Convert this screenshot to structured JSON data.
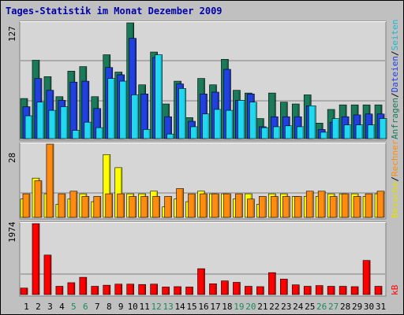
{
  "title": "Tages-Statistik im Monat Dezember 2009",
  "colors": {
    "background": "#c0c0c0",
    "panel": "#d6d6d6",
    "grid": "#808080",
    "title": "#0000aa",
    "anfragen": "#1a7a5a",
    "dateien": "#2040e0",
    "seiten": "#20d8f0",
    "besuche": "#ffff00",
    "rechner": "#ff8c10",
    "kb": "#ff0000",
    "weekday": "#000000",
    "weekend": "#1a8a5a"
  },
  "right_labels": {
    "top": [
      {
        "text": "Anfragen",
        "color": "#1a7a5a"
      },
      {
        "text": "/",
        "color": "#000000"
      },
      {
        "text": "Dateien",
        "color": "#2040e0"
      },
      {
        "text": "/",
        "color": "#000000"
      },
      {
        "text": "Seiten",
        "color": "#20b8d0"
      }
    ],
    "middle": [
      {
        "text": "Besuche",
        "color": "#e0e000"
      },
      {
        "text": "/",
        "color": "#000000"
      },
      {
        "text": "Rechner",
        "color": "#ff8c10"
      }
    ],
    "bottom": [
      {
        "text": "kB",
        "color": "#ff0000"
      }
    ]
  },
  "chart_data": {
    "type": "bar",
    "title": "Tages-Statistik im Monat Dezember 2009",
    "x": [
      "1",
      "2",
      "3",
      "4",
      "5",
      "6",
      "7",
      "8",
      "9",
      "10",
      "11",
      "12",
      "13",
      "14",
      "15",
      "16",
      "17",
      "18",
      "19",
      "20",
      "21",
      "22",
      "23",
      "24",
      "25",
      "26",
      "27",
      "28",
      "29",
      "30",
      "31"
    ],
    "weekend_days": [
      "5",
      "6",
      "12",
      "13",
      "19",
      "20",
      "26",
      "27"
    ],
    "panels": [
      {
        "name": "requests",
        "ymax_label": "127",
        "ymax": 127,
        "series": [
          {
            "name": "Anfragen",
            "color": "#1a7a5a",
            "values": [
              44,
              86,
              68,
              46,
              74,
              79,
              46,
              92,
              73,
              127,
              59,
              95,
              38,
              63,
              23,
              66,
              59,
              87,
              53,
              50,
              22,
              50,
              40,
              38,
              48,
              17,
              32,
              37,
              37,
              37,
              37
            ]
          },
          {
            "name": "Dateien",
            "color": "#2040e0",
            "values": [
              35,
              66,
              53,
              42,
              62,
              63,
              33,
              78,
              70,
              110,
              49,
              89,
              24,
              60,
              19,
              49,
              51,
              76,
              42,
              49,
              13,
              24,
              24,
              24,
              36,
              10,
              18,
              24,
              26,
              27,
              27
            ]
          },
          {
            "name": "Seiten",
            "color": "#20d8f0",
            "values": [
              25,
              40,
              31,
              35,
              9,
              18,
              12,
              66,
              63,
              48,
              10,
              92,
              5,
              55,
              13,
              27,
              32,
              31,
              42,
              40,
              12,
              13,
              14,
              13,
              36,
              7,
              22,
              15,
              15,
              15,
              22
            ]
          }
        ]
      },
      {
        "name": "visits",
        "ymax_label": "28",
        "ymax": 28,
        "series": [
          {
            "name": "Besuche",
            "color": "#ffff00",
            "values": [
              7,
              15,
              9,
              5,
              7,
              9,
              6,
              24,
              19,
              9,
              9,
              10,
              4,
              7,
              6,
              10,
              9,
              9,
              7,
              9,
              5,
              9,
              9,
              8,
              8,
              8,
              9,
              9,
              9,
              8,
              9
            ]
          },
          {
            "name": "Rechner",
            "color": "#ff8c10",
            "values": [
              9,
              14,
              28,
              9,
              10,
              8,
              8,
              9,
              9,
              8,
              8,
              8,
              8,
              11,
              9,
              9,
              9,
              9,
              9,
              7,
              8,
              8,
              8,
              8,
              10,
              10,
              8,
              9,
              8,
              9,
              10
            ]
          }
        ]
      },
      {
        "name": "kb",
        "ymax_label": "1974",
        "ymax": 1974,
        "series": [
          {
            "name": "kB",
            "color": "#ff0000",
            "values": [
              180,
              1974,
              1100,
              230,
              330,
              480,
              230,
              260,
              290,
              290,
              280,
              290,
              210,
              220,
              210,
              720,
              300,
              380,
              340,
              230,
              220,
              610,
              430,
              270,
              230,
              250,
              230,
              230,
              220,
              950,
              230
            ]
          }
        ]
      }
    ]
  }
}
